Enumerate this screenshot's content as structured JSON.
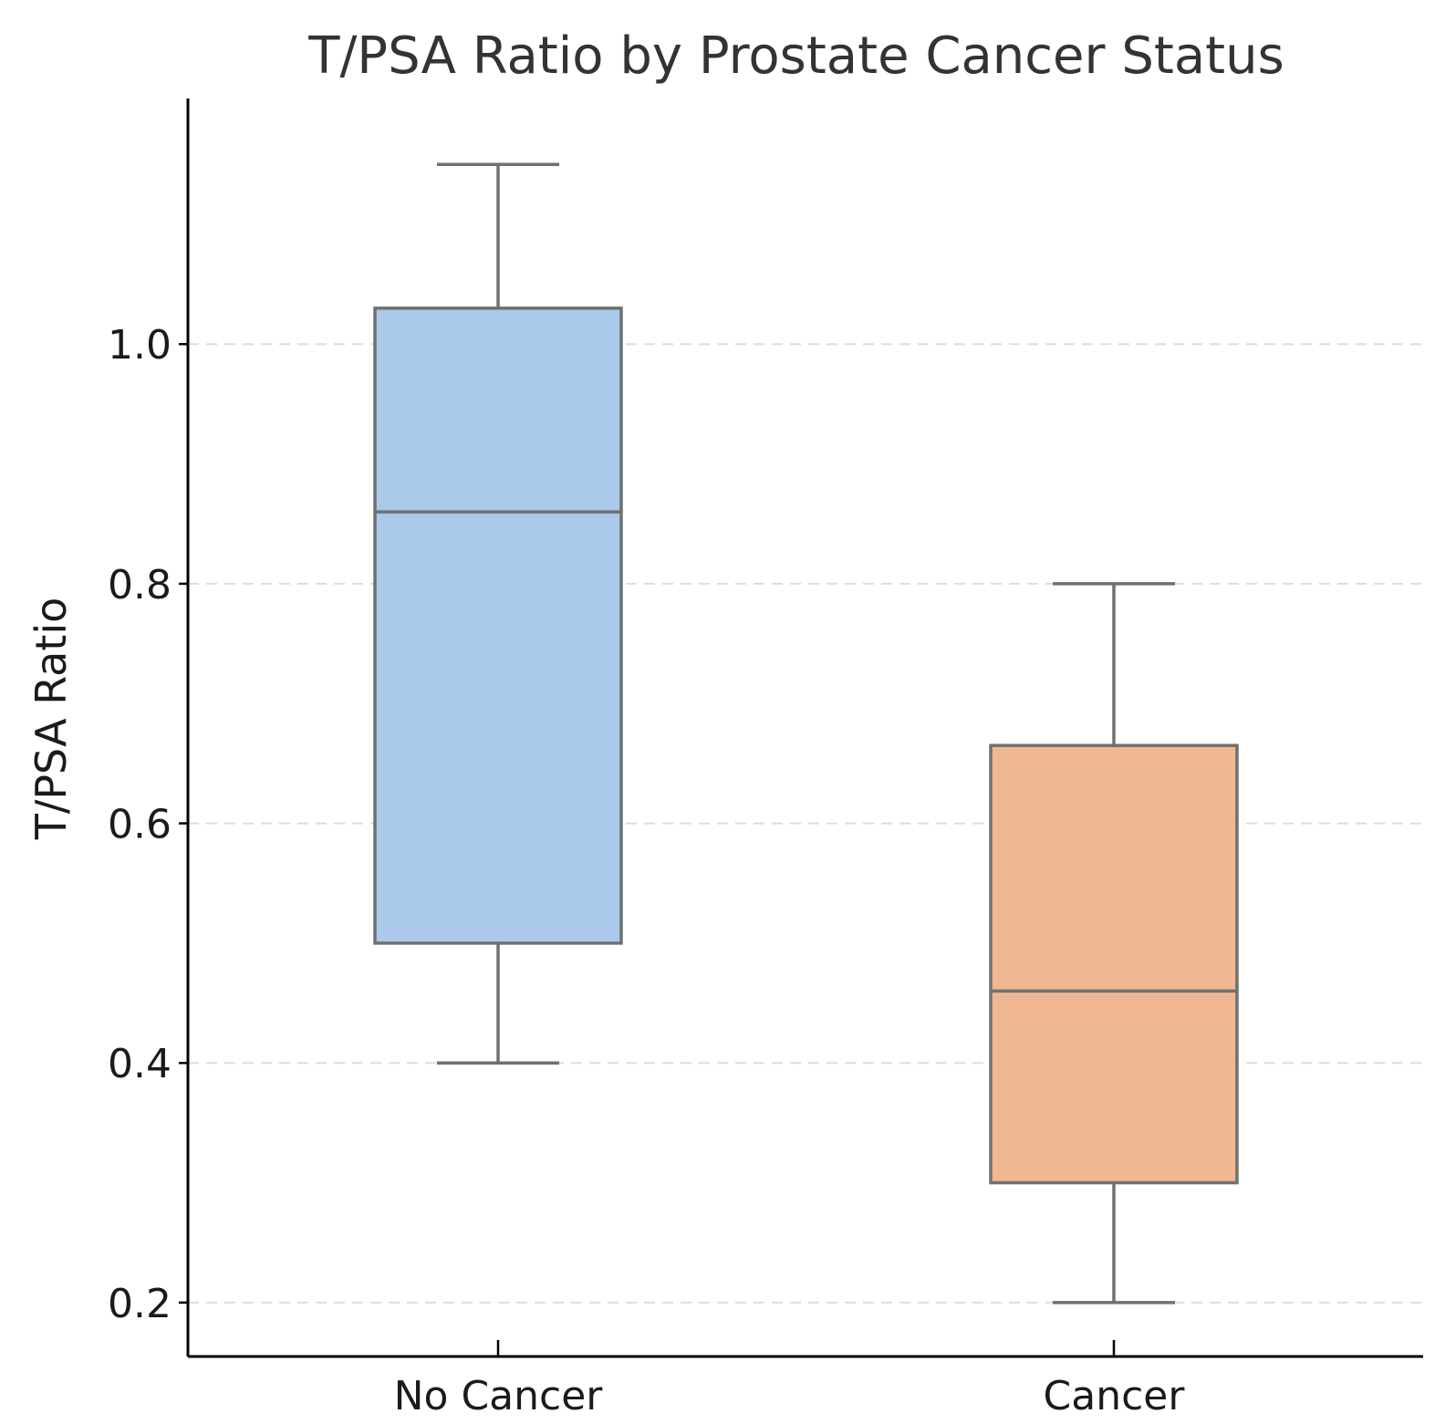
{
  "chart_data": {
    "type": "boxplot",
    "title": "T/PSA Ratio by Prostate Cancer Status",
    "xlabel": "",
    "ylabel": "T/PSA Ratio",
    "ylim": [
      0.155,
      1.205
    ],
    "yticks": [
      0.2,
      0.4,
      0.6,
      0.8,
      1.0
    ],
    "ytick_labels": [
      "0.2",
      "0.4",
      "0.6",
      "0.8",
      "1.0"
    ],
    "grid": "horizontal dashed",
    "categories": [
      "No Cancer",
      "Cancer"
    ],
    "series": [
      {
        "name": "No Cancer",
        "whisker_low": 0.4,
        "q1": 0.5,
        "median": 0.86,
        "q3": 1.03,
        "whisker_high": 1.15,
        "fill": "#abc9ea"
      },
      {
        "name": "Cancer",
        "whisker_low": 0.2,
        "q1": 0.3,
        "median": 0.46,
        "q3": 0.665,
        "whisker_high": 0.8,
        "fill": "#efb792"
      }
    ],
    "box_edge_color": "#707070",
    "whisker_color": "#707070"
  }
}
